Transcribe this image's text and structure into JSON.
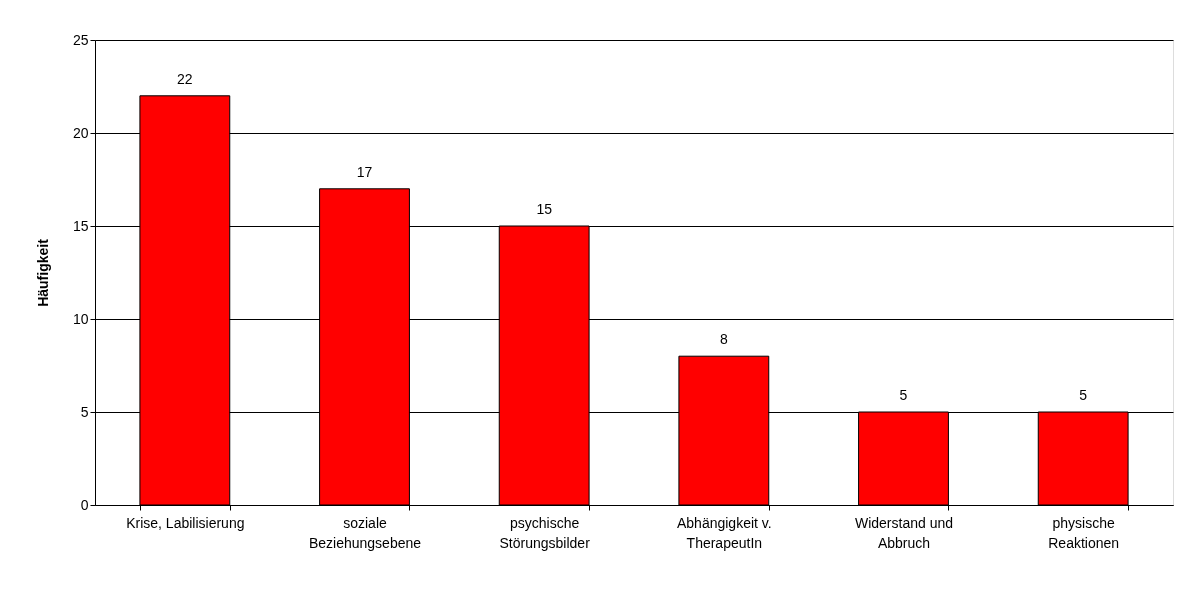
{
  "chart_data": {
    "type": "bar",
    "ylabel": "Häufigkeit",
    "categories": [
      "Krise, Labilisierung",
      "soziale\nBeziehungsebene",
      "psychische\nStörungsbilder",
      "Abhängigkeit v.\nTherapeutIn",
      "Widerstand und\nAbbruch",
      "physische\nReaktionen"
    ],
    "values": [
      22,
      17,
      15,
      8,
      5,
      5
    ],
    "color": "#ff0000",
    "ylim": [
      0,
      25
    ],
    "yticks": [
      0,
      5,
      10,
      15,
      20,
      25
    ],
    "grid": "y",
    "data_labels": true
  }
}
